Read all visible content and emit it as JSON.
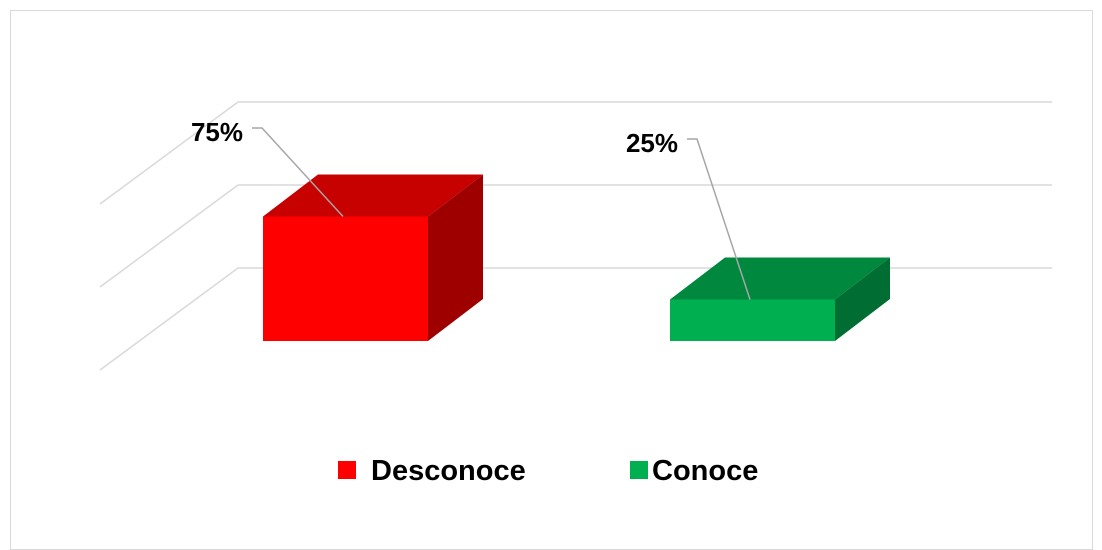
{
  "chart_data": {
    "type": "bar",
    "style": "3d-column",
    "categories": [
      "Desconoce",
      "Conoce"
    ],
    "values": [
      75,
      25
    ],
    "value_labels": [
      "75%",
      "25%"
    ],
    "colors": [
      "#ff0000",
      "#00b050"
    ],
    "ylim": [
      0,
      100
    ],
    "grid": true,
    "legend_position": "bottom",
    "legend": [
      {
        "name": "Desconoce",
        "color": "#ff0000"
      },
      {
        "name": "Conoce",
        "color": "#00b050"
      }
    ]
  }
}
